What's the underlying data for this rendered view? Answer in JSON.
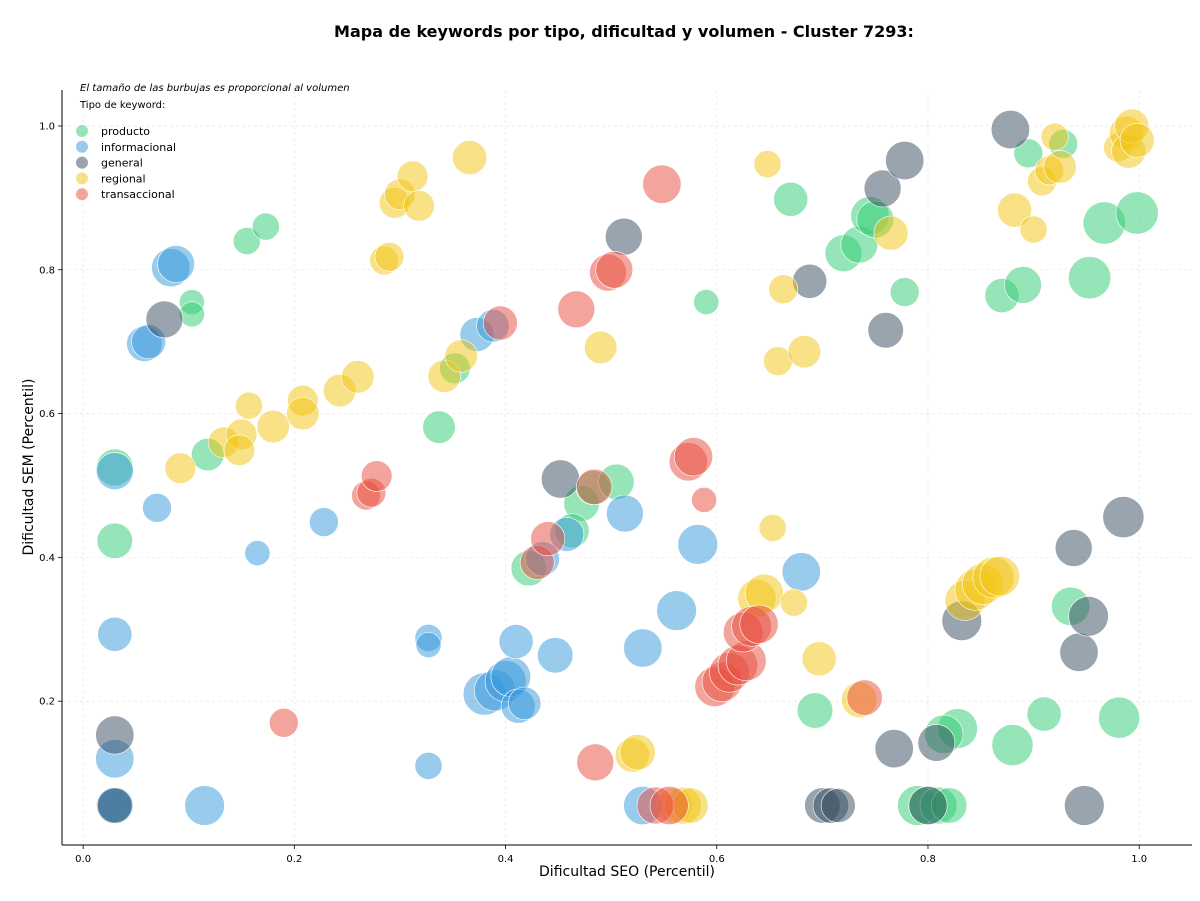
{
  "chart_data": {
    "type": "scatter",
    "title": "Mapa de keywords por tipo, dificultad y volumen - Cluster 7293:",
    "note": "El tamaño de las burbujas es proporcional al volumen",
    "xlabel": "Dificultad SEO (Percentil)",
    "ylabel": "Dificultad SEM (Percentil)",
    "xlim": [
      -0.02,
      1.05
    ],
    "ylim": [
      0.0,
      1.05
    ],
    "xticks": [
      "0.0",
      "0.2",
      "0.4",
      "0.6",
      "0.8",
      "1.0"
    ],
    "yticks": [
      "0.2",
      "0.4",
      "0.6",
      "0.8",
      "1.0"
    ],
    "grid": true,
    "legend": {
      "title": "Tipo de keyword:",
      "placement": "top-left",
      "entries": [
        "producto",
        "informacional",
        "general",
        "regional",
        "transaccional"
      ]
    },
    "colors": {
      "producto": "#2ecc71",
      "informacional": "#3498db",
      "general": "#34495e",
      "regional": "#f1c40f",
      "transaccional": "#e74c3c"
    },
    "series": [
      {
        "name": "producto",
        "points": [
          [
            0.03,
            0.525,
            0.65
          ],
          [
            0.03,
            0.423,
            0.6
          ],
          [
            0.118,
            0.543,
            0.5
          ],
          [
            0.155,
            0.84,
            0.35
          ],
          [
            0.173,
            0.86,
            0.35
          ],
          [
            0.103,
            0.755,
            0.3
          ],
          [
            0.103,
            0.738,
            0.3
          ],
          [
            0.337,
            0.581,
            0.5
          ],
          [
            0.352,
            0.663,
            0.45
          ],
          [
            0.472,
            0.475,
            0.6
          ],
          [
            0.483,
            0.497,
            0.55
          ],
          [
            0.505,
            0.505,
            0.6
          ],
          [
            0.463,
            0.437,
            0.55
          ],
          [
            0.422,
            0.385,
            0.6
          ],
          [
            0.59,
            0.755,
            0.3
          ],
          [
            0.67,
            0.898,
            0.55
          ],
          [
            0.72,
            0.823,
            0.65
          ],
          [
            0.735,
            0.835,
            0.65
          ],
          [
            0.745,
            0.875,
            0.7
          ],
          [
            0.75,
            0.87,
            0.65
          ],
          [
            0.778,
            0.769,
            0.4
          ],
          [
            0.87,
            0.764,
            0.55
          ],
          [
            0.89,
            0.779,
            0.65
          ],
          [
            0.895,
            0.962,
            0.4
          ],
          [
            0.928,
            0.975,
            0.4
          ],
          [
            0.953,
            0.789,
            0.85
          ],
          [
            0.967,
            0.865,
            0.85
          ],
          [
            0.998,
            0.879,
            0.85
          ],
          [
            0.935,
            0.332,
            0.7
          ],
          [
            0.91,
            0.182,
            0.55
          ],
          [
            0.981,
            0.177,
            0.8
          ],
          [
            0.88,
            0.139,
            0.8
          ],
          [
            0.828,
            0.162,
            0.75
          ],
          [
            0.815,
            0.154,
            0.7
          ],
          [
            0.693,
            0.187,
            0.6
          ],
          [
            0.79,
            0.055,
            0.75
          ],
          [
            0.8,
            0.055,
            0.7
          ],
          [
            0.81,
            0.055,
            0.65
          ],
          [
            0.82,
            0.055,
            0.6
          ]
        ]
      },
      {
        "name": "informacional",
        "points": [
          [
            0.03,
            0.52,
            0.65
          ],
          [
            0.03,
            0.293,
            0.55
          ],
          [
            0.03,
            0.12,
            0.7
          ],
          [
            0.03,
            0.055,
            0.65
          ],
          [
            0.03,
            0.055,
            0.55
          ],
          [
            0.058,
            0.697,
            0.6
          ],
          [
            0.062,
            0.7,
            0.55
          ],
          [
            0.083,
            0.803,
            0.7
          ],
          [
            0.088,
            0.808,
            0.65
          ],
          [
            0.07,
            0.469,
            0.4
          ],
          [
            0.165,
            0.406,
            0.3
          ],
          [
            0.228,
            0.449,
            0.4
          ],
          [
            0.115,
            0.055,
            0.75
          ],
          [
            0.327,
            0.288,
            0.35
          ],
          [
            0.327,
            0.278,
            0.3
          ],
          [
            0.327,
            0.11,
            0.35
          ],
          [
            0.373,
            0.71,
            0.55
          ],
          [
            0.388,
            0.722,
            0.5
          ],
          [
            0.38,
            0.21,
            0.85
          ],
          [
            0.39,
            0.215,
            0.8
          ],
          [
            0.4,
            0.228,
            0.8
          ],
          [
            0.405,
            0.234,
            0.75
          ],
          [
            0.41,
            0.283,
            0.55
          ],
          [
            0.412,
            0.193,
            0.55
          ],
          [
            0.418,
            0.197,
            0.5
          ],
          [
            0.435,
            0.398,
            0.55
          ],
          [
            0.447,
            0.264,
            0.6
          ],
          [
            0.458,
            0.432,
            0.55
          ],
          [
            0.513,
            0.461,
            0.65
          ],
          [
            0.53,
            0.274,
            0.7
          ],
          [
            0.53,
            0.055,
            0.7
          ],
          [
            0.562,
            0.326,
            0.75
          ],
          [
            0.582,
            0.418,
            0.75
          ],
          [
            0.68,
            0.38,
            0.7
          ]
        ]
      },
      {
        "name": "general",
        "points": [
          [
            0.03,
            0.153,
            0.7
          ],
          [
            0.03,
            0.055,
            0.6
          ],
          [
            0.077,
            0.731,
            0.65
          ],
          [
            0.452,
            0.509,
            0.7
          ],
          [
            0.512,
            0.846,
            0.65
          ],
          [
            0.688,
            0.784,
            0.55
          ],
          [
            0.757,
            0.913,
            0.65
          ],
          [
            0.76,
            0.716,
            0.6
          ],
          [
            0.778,
            0.952,
            0.7
          ],
          [
            0.878,
            0.995,
            0.7
          ],
          [
            0.7,
            0.055,
            0.6
          ],
          [
            0.708,
            0.055,
            0.6
          ],
          [
            0.715,
            0.055,
            0.55
          ],
          [
            0.768,
            0.134,
            0.7
          ],
          [
            0.8,
            0.055,
            0.7
          ],
          [
            0.808,
            0.142,
            0.65
          ],
          [
            0.832,
            0.312,
            0.75
          ],
          [
            0.938,
            0.413,
            0.65
          ],
          [
            0.943,
            0.268,
            0.7
          ],
          [
            0.952,
            0.318,
            0.75
          ],
          [
            0.985,
            0.456,
            0.8
          ],
          [
            0.948,
            0.055,
            0.75
          ]
        ]
      },
      {
        "name": "regional",
        "points": [
          [
            0.092,
            0.524,
            0.45
          ],
          [
            0.133,
            0.56,
            0.45
          ],
          [
            0.15,
            0.571,
            0.45
          ],
          [
            0.148,
            0.549,
            0.45
          ],
          [
            0.157,
            0.611,
            0.35
          ],
          [
            0.18,
            0.582,
            0.5
          ],
          [
            0.208,
            0.618,
            0.45
          ],
          [
            0.208,
            0.6,
            0.5
          ],
          [
            0.243,
            0.632,
            0.5
          ],
          [
            0.26,
            0.651,
            0.5
          ],
          [
            0.285,
            0.813,
            0.4
          ],
          [
            0.29,
            0.818,
            0.4
          ],
          [
            0.295,
            0.893,
            0.45
          ],
          [
            0.3,
            0.905,
            0.45
          ],
          [
            0.312,
            0.93,
            0.45
          ],
          [
            0.318,
            0.889,
            0.45
          ],
          [
            0.342,
            0.652,
            0.5
          ],
          [
            0.358,
            0.68,
            0.5
          ],
          [
            0.366,
            0.956,
            0.55
          ],
          [
            0.49,
            0.692,
            0.5
          ],
          [
            0.52,
            0.125,
            0.55
          ],
          [
            0.525,
            0.129,
            0.6
          ],
          [
            0.56,
            0.055,
            0.6
          ],
          [
            0.568,
            0.055,
            0.65
          ],
          [
            0.575,
            0.055,
            0.6
          ],
          [
            0.648,
            0.947,
            0.35
          ],
          [
            0.653,
            0.441,
            0.35
          ],
          [
            0.658,
            0.673,
            0.4
          ],
          [
            0.663,
            0.773,
            0.4
          ],
          [
            0.638,
            0.343,
            0.7
          ],
          [
            0.645,
            0.35,
            0.7
          ],
          [
            0.673,
            0.337,
            0.35
          ],
          [
            0.683,
            0.686,
            0.5
          ],
          [
            0.697,
            0.259,
            0.55
          ],
          [
            0.735,
            0.202,
            0.6
          ],
          [
            0.765,
            0.851,
            0.55
          ],
          [
            0.835,
            0.34,
            0.75
          ],
          [
            0.845,
            0.355,
            0.8
          ],
          [
            0.852,
            0.363,
            0.8
          ],
          [
            0.862,
            0.372,
            0.8
          ],
          [
            0.868,
            0.374,
            0.75
          ],
          [
            0.882,
            0.883,
            0.55
          ],
          [
            0.9,
            0.856,
            0.35
          ],
          [
            0.908,
            0.923,
            0.4
          ],
          [
            0.915,
            0.938,
            0.4
          ],
          [
            0.92,
            0.985,
            0.35
          ],
          [
            0.925,
            0.943,
            0.5
          ],
          [
            0.98,
            0.97,
            0.4
          ],
          [
            0.988,
            0.99,
            0.55
          ],
          [
            0.99,
            0.965,
            0.55
          ],
          [
            0.993,
            1.0,
            0.55
          ],
          [
            0.998,
            0.98,
            0.55
          ]
        ]
      },
      {
        "name": "transaccional",
        "points": [
          [
            0.19,
            0.17,
            0.4
          ],
          [
            0.268,
            0.486,
            0.4
          ],
          [
            0.273,
            0.49,
            0.4
          ],
          [
            0.278,
            0.513,
            0.45
          ],
          [
            0.395,
            0.726,
            0.55
          ],
          [
            0.43,
            0.393,
            0.55
          ],
          [
            0.44,
            0.426,
            0.55
          ],
          [
            0.467,
            0.745,
            0.65
          ],
          [
            0.484,
            0.498,
            0.6
          ],
          [
            0.485,
            0.115,
            0.65
          ],
          [
            0.497,
            0.796,
            0.65
          ],
          [
            0.503,
            0.8,
            0.65
          ],
          [
            0.548,
            0.919,
            0.7
          ],
          [
            0.542,
            0.055,
            0.65
          ],
          [
            0.555,
            0.055,
            0.7
          ],
          [
            0.573,
            0.533,
            0.7
          ],
          [
            0.578,
            0.54,
            0.7
          ],
          [
            0.588,
            0.48,
            0.3
          ],
          [
            0.598,
            0.22,
            0.75
          ],
          [
            0.605,
            0.227,
            0.75
          ],
          [
            0.612,
            0.24,
            0.75
          ],
          [
            0.62,
            0.25,
            0.75
          ],
          [
            0.628,
            0.256,
            0.75
          ],
          [
            0.625,
            0.296,
            0.75
          ],
          [
            0.633,
            0.304,
            0.75
          ],
          [
            0.64,
            0.307,
            0.7
          ],
          [
            0.74,
            0.205,
            0.6
          ]
        ]
      }
    ]
  }
}
